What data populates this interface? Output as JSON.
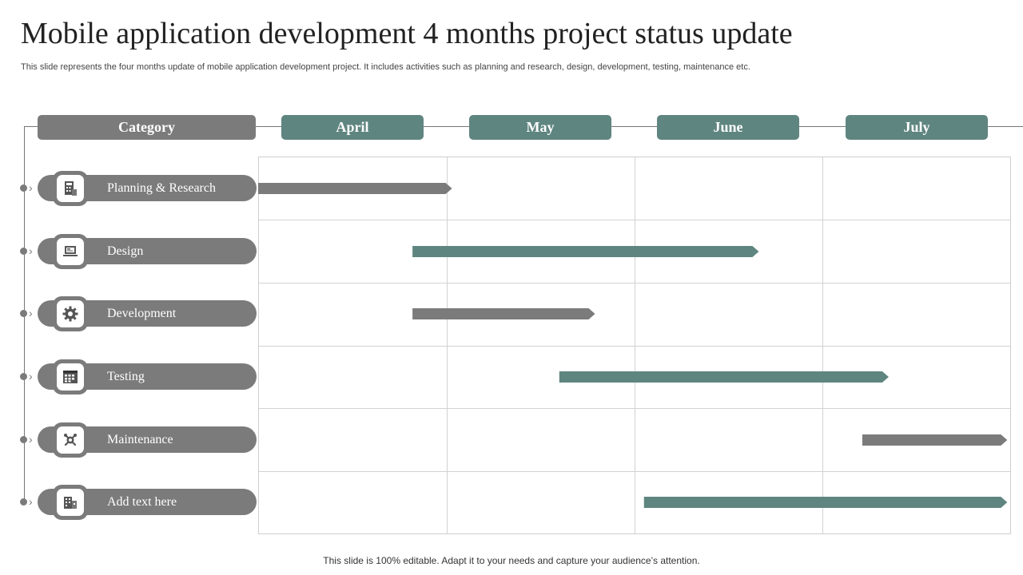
{
  "slide": {
    "title": "Mobile application development 4 months project status update",
    "subtitle": "This slide represents the four months update of mobile application development project. It includes activities such as planning and research, design, development, testing, maintenance etc.",
    "footer": "This slide is 100% editable. Adapt it to your needs and capture your audience’s attention."
  },
  "colors": {
    "gray": "#7b7b7b",
    "teal": "#5f8580"
  },
  "chart_data": {
    "type": "bar",
    "orientation": "horizontal-gantt",
    "category_header": "Category",
    "months": [
      "April",
      "May",
      "June",
      "July"
    ],
    "x_range_months": [
      0,
      4
    ],
    "tasks": [
      {
        "label": "Planning & Research",
        "icon": "calculator-icon",
        "start": 0.0,
        "end": 1.03,
        "color": "#7b7b7b"
      },
      {
        "label": "Design",
        "icon": "laptop-icon",
        "start": 0.82,
        "end": 2.66,
        "color": "#5f8580"
      },
      {
        "label": "Development",
        "icon": "gear-icon",
        "start": 0.82,
        "end": 1.79,
        "color": "#7b7b7b"
      },
      {
        "label": "Testing",
        "icon": "calendar-grid-icon",
        "start": 1.6,
        "end": 3.35,
        "color": "#5f8580"
      },
      {
        "label": "Maintenance",
        "icon": "wrench-gear-icon",
        "start": 3.21,
        "end": 3.98,
        "color": "#7b7b7b"
      },
      {
        "label": "Add text here",
        "icon": "building-icon",
        "start": 2.05,
        "end": 3.98,
        "color": "#5f8580"
      }
    ]
  }
}
